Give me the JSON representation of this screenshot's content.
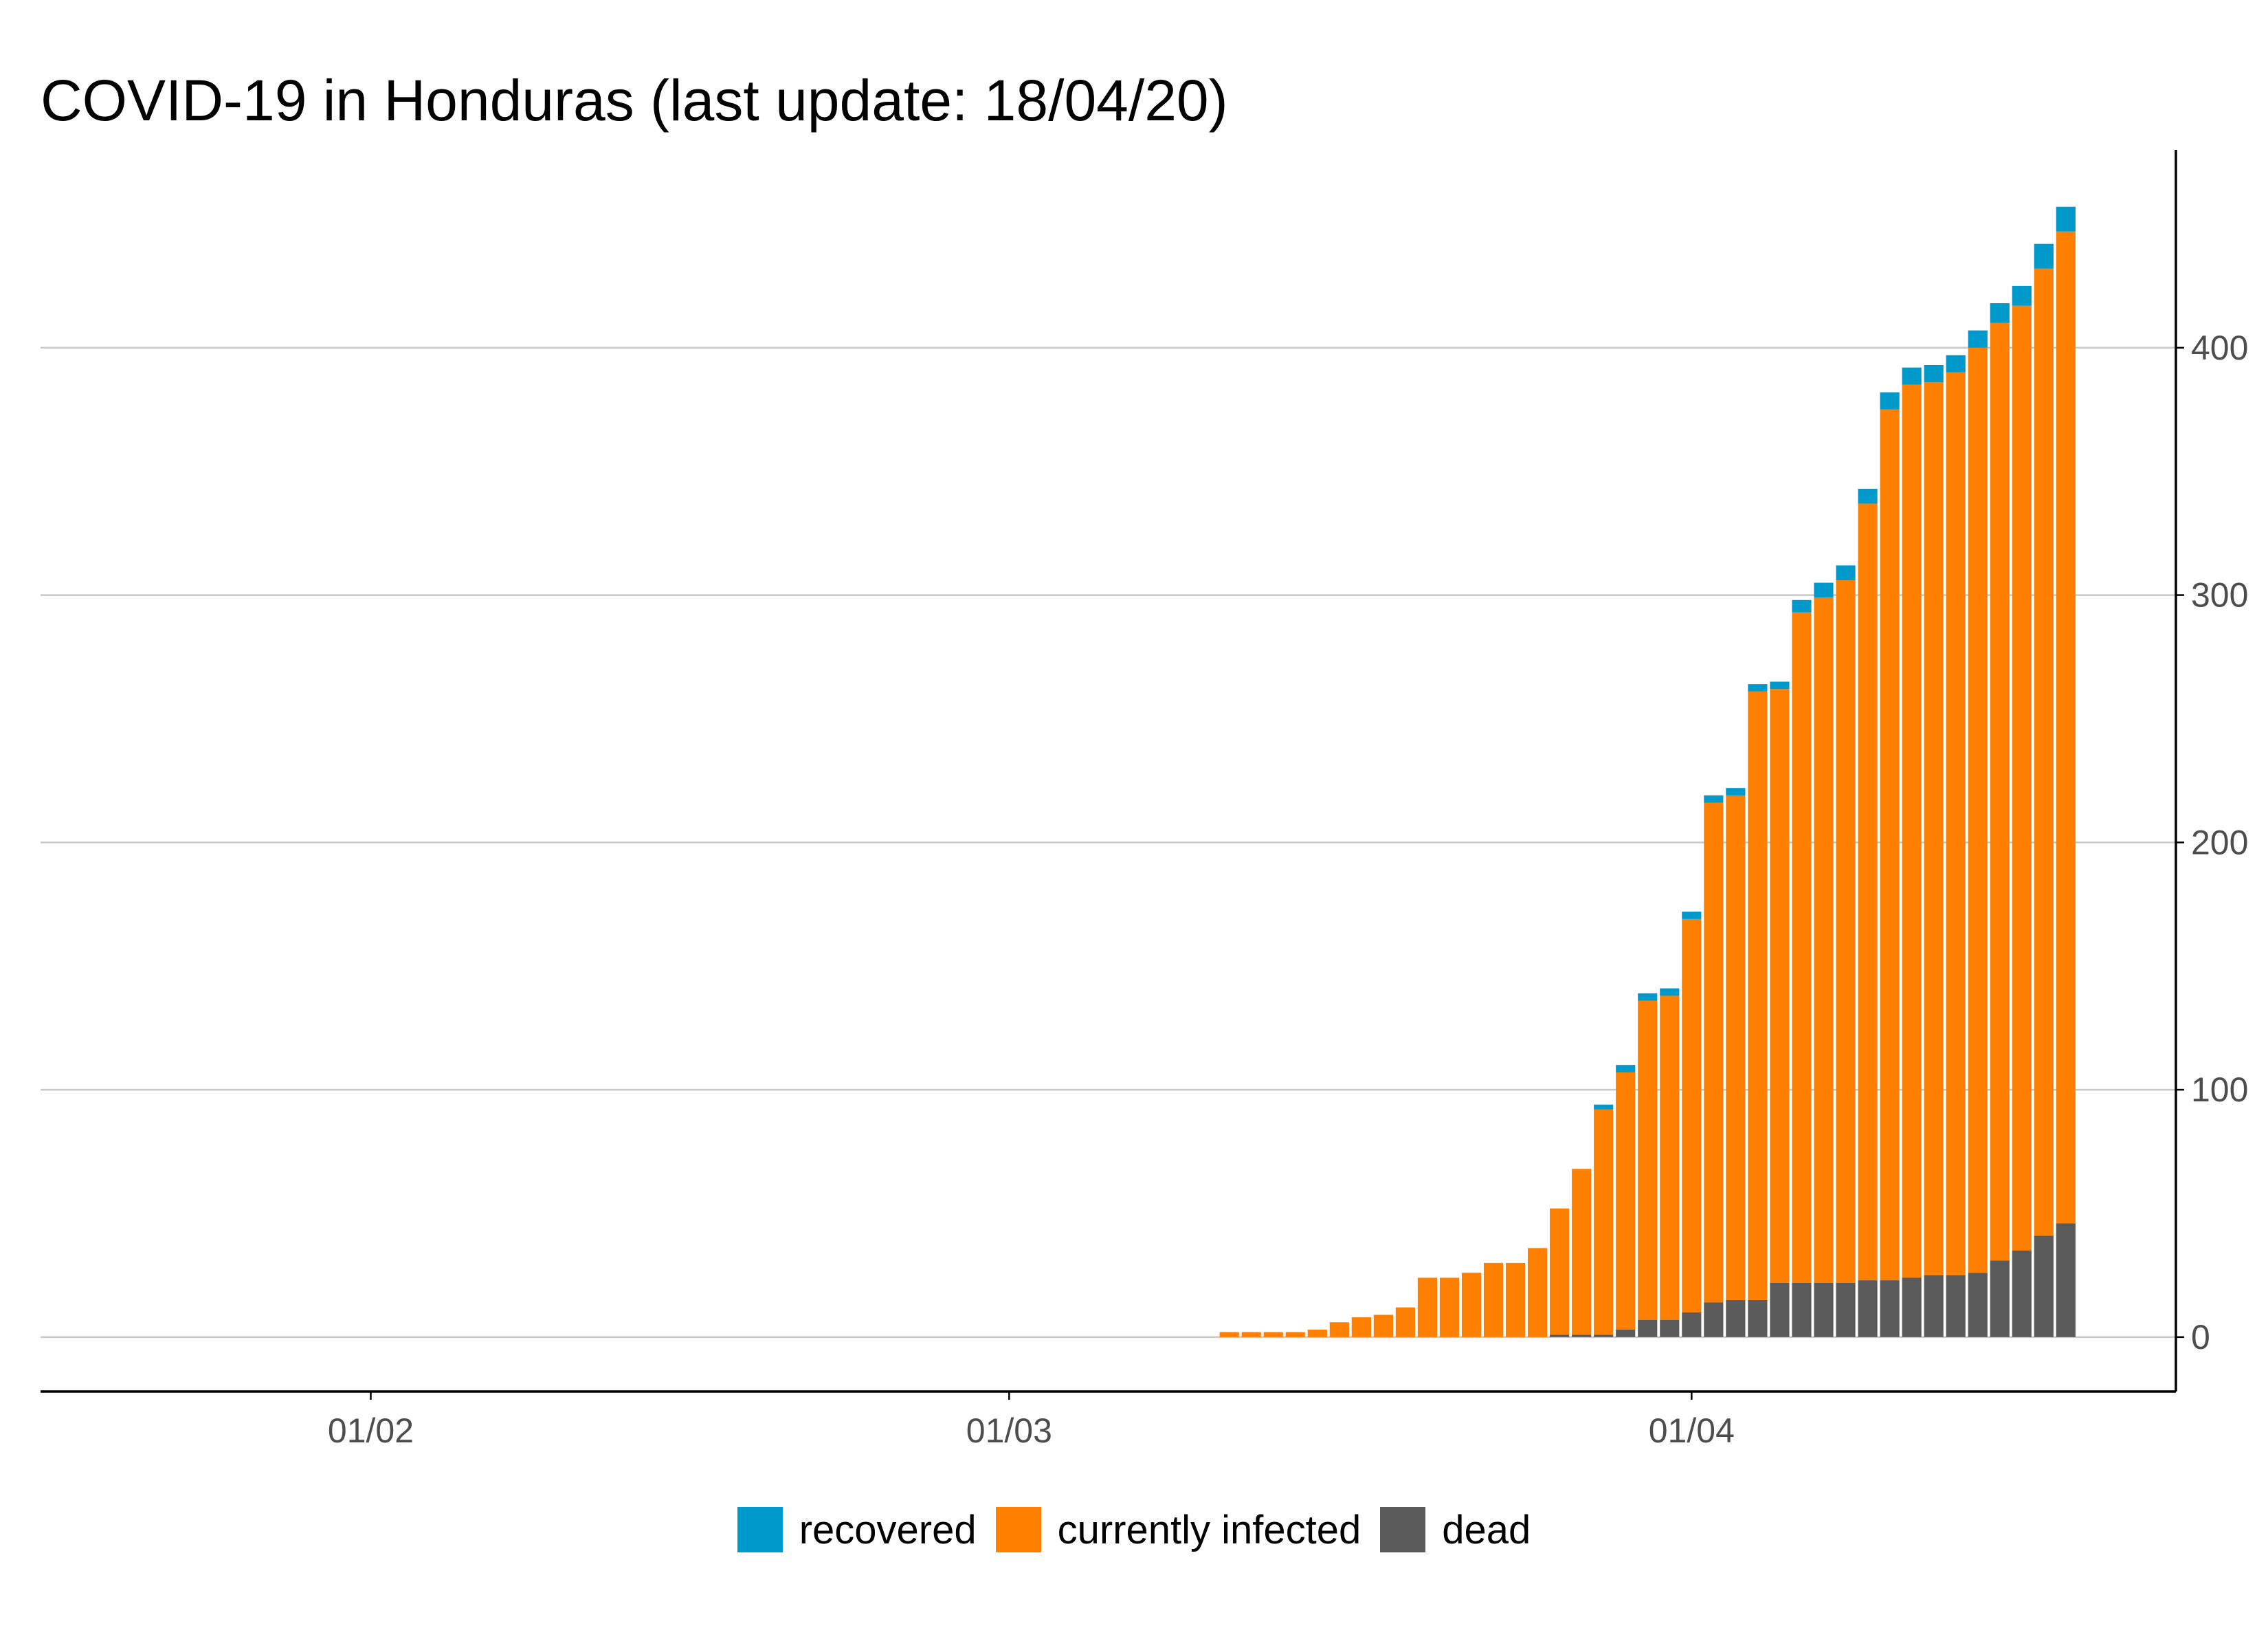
{
  "colors": {
    "recovered": "#0099cc",
    "infected": "#ff7f00",
    "dead": "#5a5a5a",
    "grid": "#c8c8c8",
    "axis": "#000000"
  },
  "chart_data": {
    "type": "bar",
    "stacked": true,
    "title": "COVID-19 in Honduras (last update: 18/04/20)",
    "xlabel": "",
    "ylabel": "",
    "y_axis_side": "right",
    "x_ticks": [
      {
        "label": "01/02",
        "date": "2020-02-01"
      },
      {
        "label": "01/03",
        "date": "2020-03-01"
      },
      {
        "label": "01/04",
        "date": "2020-04-01"
      }
    ],
    "y_ticks": [
      0,
      100,
      200,
      300,
      400
    ],
    "xlim": [
      "2020-01-17",
      "2020-04-23"
    ],
    "ylim": [
      -22,
      480
    ],
    "grid": "horizontal",
    "legend_position": "bottom",
    "legend": [
      {
        "key": "recovered",
        "label": "recovered"
      },
      {
        "key": "infected",
        "label": "currently infected"
      },
      {
        "key": "dead",
        "label": "dead"
      }
    ],
    "dates": [
      "2020-03-11",
      "2020-03-12",
      "2020-03-13",
      "2020-03-14",
      "2020-03-15",
      "2020-03-16",
      "2020-03-17",
      "2020-03-18",
      "2020-03-19",
      "2020-03-20",
      "2020-03-21",
      "2020-03-22",
      "2020-03-23",
      "2020-03-24",
      "2020-03-25",
      "2020-03-26",
      "2020-03-27",
      "2020-03-28",
      "2020-03-29",
      "2020-03-30",
      "2020-03-31",
      "2020-04-01",
      "2020-04-02",
      "2020-04-03",
      "2020-04-04",
      "2020-04-05",
      "2020-04-06",
      "2020-04-07",
      "2020-04-08",
      "2020-04-09",
      "2020-04-10",
      "2020-04-11",
      "2020-04-12",
      "2020-04-13",
      "2020-04-14",
      "2020-04-15",
      "2020-04-16",
      "2020-04-17",
      "2020-04-18"
    ],
    "series": [
      {
        "key": "dead",
        "name": "dead",
        "values": [
          0,
          0,
          0,
          0,
          0,
          0,
          0,
          0,
          0,
          0,
          0,
          0,
          0,
          0,
          0,
          1,
          1,
          1,
          3,
          7,
          7,
          10,
          14,
          15,
          15,
          22,
          22,
          22,
          22,
          23,
          23,
          24,
          25,
          25,
          26,
          31,
          35,
          41,
          46
        ]
      },
      {
        "key": "infected",
        "name": "currently infected",
        "values": [
          2,
          2,
          2,
          2,
          3,
          6,
          8,
          9,
          12,
          24,
          24,
          26,
          30,
          30,
          36,
          51,
          67,
          91,
          104,
          129,
          131,
          159,
          202,
          204,
          246,
          240,
          271,
          277,
          284,
          314,
          352,
          361,
          361,
          365,
          374,
          379,
          382,
          391,
          401
        ]
      },
      {
        "key": "recovered",
        "name": "recovered",
        "values": [
          0,
          0,
          0,
          0,
          0,
          0,
          0,
          0,
          0,
          0,
          0,
          0,
          0,
          0,
          0,
          0,
          0,
          2,
          3,
          3,
          3,
          3,
          3,
          3,
          3,
          3,
          5,
          6,
          6,
          6,
          7,
          7,
          7,
          7,
          7,
          8,
          8,
          10,
          10
        ]
      }
    ]
  }
}
